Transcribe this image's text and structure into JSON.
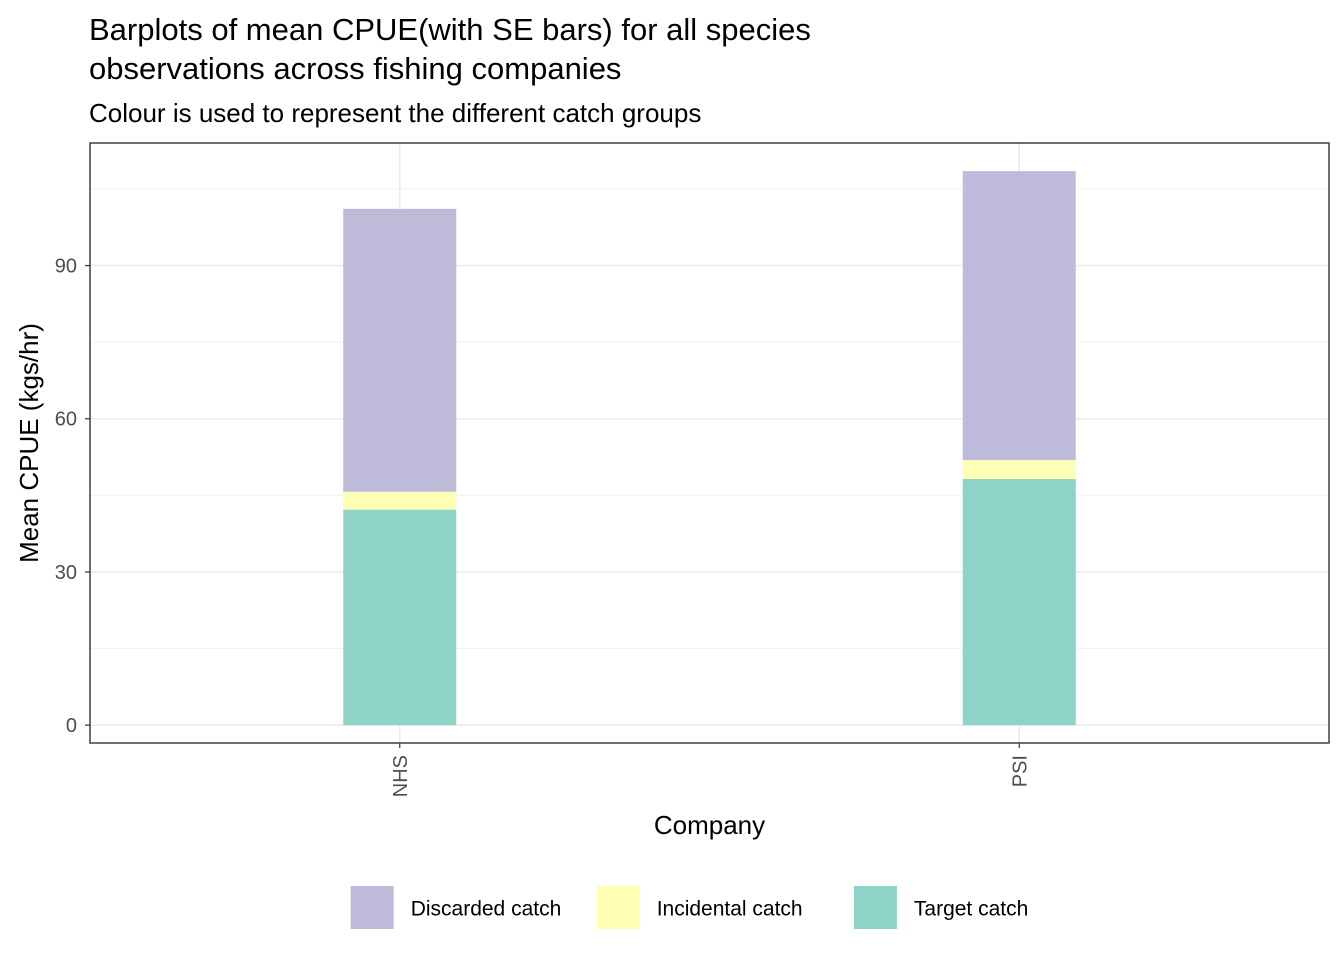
{
  "chart_data": {
    "type": "bar",
    "stacked": true,
    "title_lines": [
      "Barplots of mean CPUE(with SE bars) for all species",
      "observations across fishing companies"
    ],
    "subtitle": "Colour is used to represent the different catch groups",
    "xlabel": "Company",
    "ylabel": "Mean CPUE (kgs/hr)",
    "categories": [
      "NHS",
      "PSI"
    ],
    "series": [
      {
        "name": "Target catch",
        "color": "#8dd3c7",
        "values": [
          42.2,
          48.2
        ]
      },
      {
        "name": "Incidental catch",
        "color": "#ffffb3",
        "values": [
          3.5,
          3.7
        ]
      },
      {
        "name": "Discarded catch",
        "color": "#bebada",
        "values": [
          55.4,
          56.6
        ]
      }
    ],
    "legend_order": [
      "Discarded catch",
      "Incidental catch",
      "Target catch"
    ],
    "ylim": [
      -3.5,
      114
    ],
    "yticks": [
      0,
      30,
      60,
      90
    ],
    "grid": true,
    "legend_position": "bottom"
  }
}
